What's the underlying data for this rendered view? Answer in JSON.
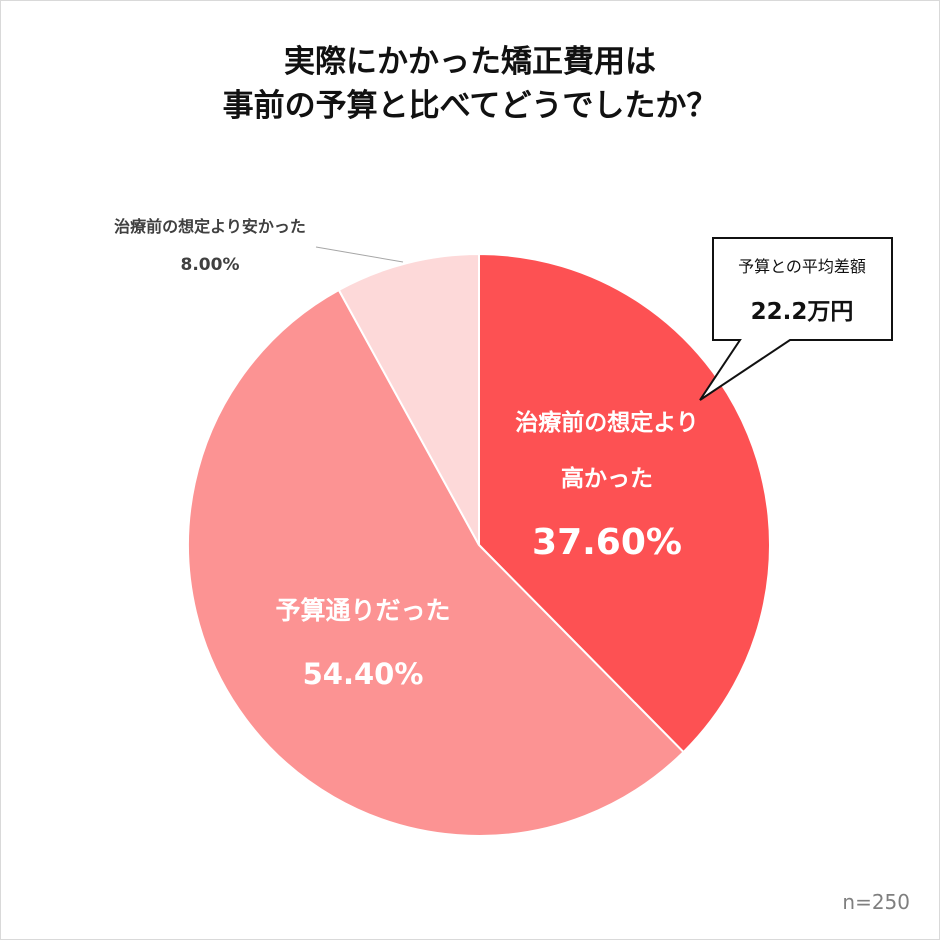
{
  "title_lines": [
    "実際にかかった矯正費用は",
    "事前の予算と比べてどうでしたか？"
  ],
  "colors": {
    "higher": "#fd5153",
    "as_budgeted": "#fc9393",
    "lower": "#fdd9d9",
    "callout_border": "#111111"
  },
  "chart_data": {
    "type": "pie",
    "title": "実際にかかった矯正費用は事前の予算と比べてどうでしたか？",
    "start_angle_deg": 0,
    "direction": "clockwise",
    "slices": [
      {
        "label_lines": [
          "治療前の想定より",
          "高かった"
        ],
        "value": 37.6,
        "value_label": "37.60%",
        "color": "#fd5153",
        "label_placement": "inside"
      },
      {
        "label_lines": [
          "予算通りだった"
        ],
        "value": 54.4,
        "value_label": "54.40%",
        "color": "#fc9393",
        "label_placement": "inside"
      },
      {
        "label_lines": [
          "治療前の想定より安かった"
        ],
        "value": 8.0,
        "value_label": "8.00%",
        "color": "#fdd9d9",
        "label_placement": "outside"
      }
    ],
    "callout": {
      "label": "予算との平均差額",
      "value": "22.2万円"
    },
    "sample_size": "n=250"
  }
}
